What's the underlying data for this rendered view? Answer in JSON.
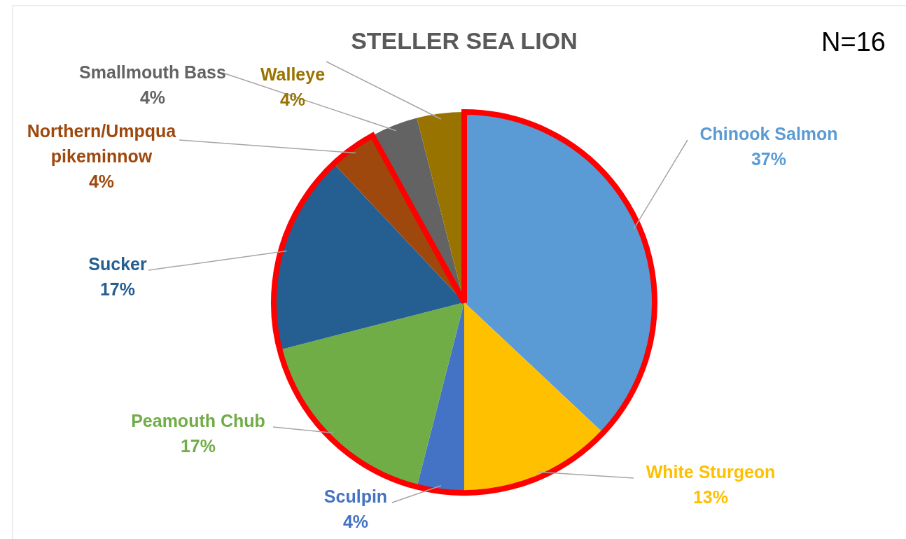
{
  "chart_data": {
    "type": "pie",
    "title": "STELLER SEA LION",
    "categories": [
      "Chinook Salmon",
      "White Sturgeon",
      "Sculpin",
      "Peamouth Chub",
      "Sucker",
      "Northern/Umpqua pikeminnow",
      "Smallmouth Bass",
      "Walleye"
    ],
    "values": [
      37,
      13,
      4,
      17,
      17,
      4,
      4,
      4
    ],
    "value_labels": [
      "37%",
      "13%",
      "4%",
      "17%",
      "17%",
      "4%",
      "4%",
      "4%"
    ],
    "colors": [
      "#5b9bd5",
      "#ffc000",
      "#4472c4",
      "#70ad47",
      "#255e91",
      "#9e480e",
      "#636363",
      "#997300"
    ],
    "annotations": [
      "N=16"
    ],
    "legend": false
  }
}
